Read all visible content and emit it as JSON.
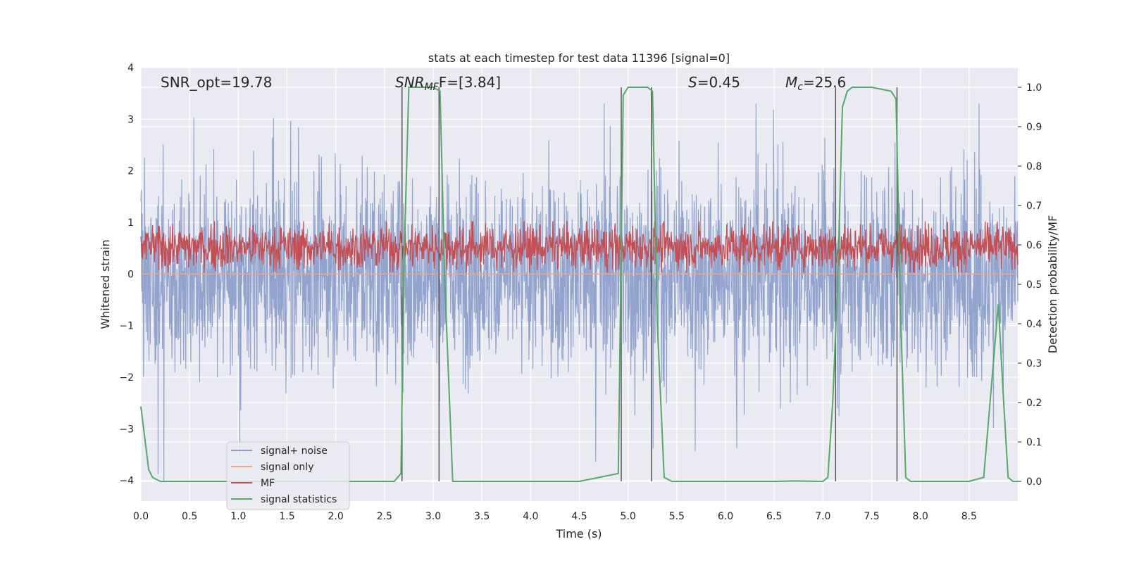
{
  "chart_data": {
    "type": "line",
    "title": "stats at each timestep for test data 11396 [signal=0]",
    "xlabel": "Time (s)",
    "ylabel": "Whitened strain",
    "y2label": "Detection probability/MF",
    "xlim": [
      0.0,
      9.0
    ],
    "ylim": [
      -4.4,
      4.0
    ],
    "y2lim": [
      -0.05,
      1.05
    ],
    "grid": true,
    "x_ticks": [
      "0.0",
      "0.5",
      "1.0",
      "1.5",
      "2.0",
      "2.5",
      "3.0",
      "3.5",
      "4.0",
      "4.5",
      "5.0",
      "5.5",
      "6.0",
      "6.5",
      "7.0",
      "7.5",
      "8.0",
      "8.5"
    ],
    "y_ticks": [
      "4",
      "3",
      "2",
      "1",
      "0",
      "−1",
      "−2",
      "−3",
      "−4"
    ],
    "y2_ticks": [
      "1.0",
      "0.9",
      "0.8",
      "0.7",
      "0.6",
      "0.5",
      "0.4",
      "0.3",
      "0.2",
      "0.1",
      "0.0"
    ],
    "annotations": {
      "snr_opt": "SNR_opt=19.78",
      "snr_mf_main": "SNR",
      "snr_mf_sub": "MF",
      "snr_mf_value": "F=[3.84]",
      "s_main": "S",
      "s_value": "=0.45",
      "mc_main": "M",
      "mc_sub": "c",
      "mc_value": "=25.6"
    },
    "legend": {
      "position": "lower-left",
      "entries": [
        "signal+ noise",
        "signal only",
        "MF",
        "signal statistics"
      ]
    },
    "series": [
      {
        "name": "signal+ noise",
        "axis": "left",
        "color": "#8da0cb",
        "approx_range": [
          -4.0,
          3.3
        ],
        "description_values": "dense noisy trace, envelope roughly -2.5 to 2.5 with spikes"
      },
      {
        "name": "signal only",
        "axis": "left",
        "color": "#e8a889",
        "values_constant": 0.0
      },
      {
        "name": "MF",
        "axis": "right",
        "color": "#c44e52",
        "approx_range": [
          0.53,
          0.66
        ]
      },
      {
        "name": "signal statistics",
        "axis": "right",
        "color": "#55a868",
        "x": [
          0.0,
          0.08,
          0.12,
          0.2,
          0.3,
          0.5,
          1.0,
          1.5,
          2.0,
          2.5,
          2.6,
          2.67,
          2.7,
          2.75,
          3.0,
          3.07,
          3.12,
          3.2,
          3.4,
          3.6,
          4.0,
          4.5,
          4.9,
          4.95,
          5.0,
          5.2,
          5.25,
          5.3,
          5.37,
          5.45,
          6.0,
          6.5,
          6.7,
          7.0,
          7.05,
          7.1,
          7.15,
          7.2,
          7.25,
          7.3,
          7.5,
          7.7,
          7.75,
          7.8,
          7.85,
          7.9,
          8.0,
          8.5,
          8.65,
          8.8,
          8.85,
          8.9,
          8.95,
          9.0
        ],
        "y": [
          0.19,
          0.03,
          0.01,
          0.0,
          0.0,
          0.0,
          0.0,
          0.0,
          0.0,
          0.0,
          0.0,
          0.02,
          0.55,
          1.0,
          1.0,
          0.99,
          0.5,
          0.0,
          0.0,
          0.0,
          0.0,
          0.0,
          0.02,
          0.98,
          1.0,
          1.0,
          0.99,
          0.4,
          0.01,
          0.0,
          0.0,
          0.0,
          0.001,
          0.0,
          0.01,
          0.2,
          0.5,
          0.95,
          0.99,
          1.0,
          1.0,
          0.99,
          0.97,
          0.4,
          0.01,
          0.0,
          0.0,
          0.0,
          0.01,
          0.45,
          0.22,
          0.01,
          0.0,
          0.0
        ]
      }
    ],
    "detection_markers_x": [
      2.68,
      3.06,
      4.93,
      5.24,
      7.13,
      7.76
    ],
    "colors": {
      "plot_bg": "#eaeaf2",
      "grid": "#ffffff",
      "marker_line": "#555555"
    }
  }
}
